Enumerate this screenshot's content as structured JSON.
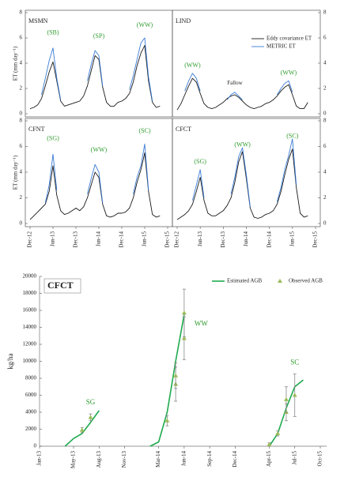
{
  "chart_data": [
    {
      "type": "line",
      "title": "MSMN",
      "ylabel": "ET (mm day⁻¹)",
      "ytick_side": "left",
      "ylim": [
        0,
        8
      ],
      "yticks": [
        0,
        2,
        4,
        6,
        8
      ],
      "x": [
        "Dec-12",
        "Jan-13",
        "Feb-13",
        "Mar-13",
        "Apr-13",
        "May-13",
        "Jun-13",
        "Jul-13",
        "Aug-13",
        "Sep-13",
        "Oct-13",
        "Nov-13",
        "Dec-13",
        "Jan-14",
        "Feb-14",
        "Mar-14",
        "Apr-14",
        "May-14",
        "Jun-14",
        "Jul-14",
        "Aug-14",
        "Sep-14",
        "Oct-14",
        "Nov-14",
        "Dec-14",
        "Jan-15",
        "Feb-15",
        "Mar-15",
        "Apr-15",
        "May-15",
        "Jun-15",
        "Jul-15",
        "Aug-15",
        "Sep-15",
        "Oct-15",
        "Nov-15",
        "Dec-15"
      ],
      "series": [
        {
          "color": "#1a1a1a",
          "values": [
            0.4,
            0.5,
            0.7,
            1.2,
            2.2,
            3.3,
            4.1,
            2.6,
            1.0,
            0.6,
            0.7,
            0.8,
            0.9,
            1.0,
            1.4,
            2.2,
            3.4,
            4.6,
            4.3,
            2.1,
            0.9,
            0.6,
            0.6,
            0.9,
            1.0,
            1.2,
            1.6,
            2.5,
            3.8,
            4.8,
            5.4,
            2.6,
            0.9,
            0.5,
            0.6,
            null,
            null
          ]
        },
        {
          "color": "#3a7bd5",
          "values": [
            null,
            null,
            null,
            1.5,
            2.8,
            4.2,
            5.2,
            2.8,
            1.1,
            null,
            null,
            null,
            null,
            null,
            null,
            2.6,
            3.9,
            5.0,
            4.6,
            2.2,
            null,
            null,
            null,
            null,
            null,
            null,
            1.9,
            3.0,
            4.3,
            5.6,
            6.0,
            2.9,
            1.0,
            null,
            null,
            null,
            null
          ]
        }
      ],
      "annotations": [
        {
          "text": "(SB)",
          "x": "Jun-13",
          "y": 6.4
        },
        {
          "text": "(SP)",
          "x": "Jun-14",
          "y": 6.1
        },
        {
          "text": "(WW)",
          "x": "Jun-15",
          "y": 7.0
        }
      ]
    },
    {
      "type": "line",
      "title": "LIND",
      "ytick_side": "right",
      "ylim": [
        0,
        8
      ],
      "yticks": [
        0,
        2,
        4,
        6,
        8
      ],
      "legend": "upper right",
      "x": [
        "Dec-12",
        "Jan-13",
        "Feb-13",
        "Mar-13",
        "Apr-13",
        "May-13",
        "Jun-13",
        "Jul-13",
        "Aug-13",
        "Sep-13",
        "Oct-13",
        "Nov-13",
        "Dec-13",
        "Jan-14",
        "Feb-14",
        "Mar-14",
        "Apr-14",
        "May-14",
        "Jun-14",
        "Jul-14",
        "Aug-14",
        "Sep-14",
        "Oct-14",
        "Nov-14",
        "Dec-14",
        "Jan-15",
        "Feb-15",
        "Mar-15",
        "Apr-15",
        "May-15",
        "Jun-15",
        "Jul-15",
        "Aug-15",
        "Sep-15",
        "Oct-15",
        "Nov-15",
        "Dec-15"
      ],
      "series": [
        {
          "name": "Eddy covariance ET",
          "color": "#1a1a1a",
          "values": [
            0.3,
            0.8,
            1.5,
            2.2,
            2.8,
            2.5,
            1.6,
            0.8,
            0.5,
            0.4,
            0.5,
            0.7,
            0.9,
            1.2,
            1.4,
            1.5,
            1.3,
            1.0,
            0.7,
            0.5,
            0.4,
            0.5,
            0.6,
            0.8,
            0.9,
            1.1,
            1.4,
            1.8,
            2.1,
            2.3,
            1.5,
            0.6,
            0.4,
            0.4,
            0.9,
            null,
            null
          ]
        },
        {
          "name": "METRIC ET",
          "color": "#3a7bd5",
          "values": [
            null,
            null,
            1.8,
            2.6,
            3.2,
            2.8,
            1.8,
            null,
            null,
            null,
            null,
            null,
            null,
            1.1,
            1.5,
            1.7,
            1.4,
            1.1,
            null,
            null,
            null,
            null,
            null,
            null,
            null,
            null,
            1.5,
            2.0,
            2.4,
            2.6,
            1.7,
            null,
            null,
            null,
            null,
            null,
            null
          ]
        }
      ],
      "annotations": [
        {
          "text": "(WW)",
          "x": "Apr-13",
          "y": 3.8
        },
        {
          "text": "Fallow",
          "x": "Mar-14",
          "y": 2.4
        },
        {
          "text": "(WW)",
          "x": "May-15",
          "y": 3.2
        }
      ]
    },
    {
      "type": "line",
      "title": "CFNT",
      "ylabel": "ET (mm day⁻¹)",
      "ytick_side": "left",
      "ylim": [
        0,
        8
      ],
      "yticks": [
        0,
        2,
        4,
        6,
        8
      ],
      "x": [
        "Dec-12",
        "Jan-13",
        "Feb-13",
        "Mar-13",
        "Apr-13",
        "May-13",
        "Jun-13",
        "Jul-13",
        "Aug-13",
        "Sep-13",
        "Oct-13",
        "Nov-13",
        "Dec-13",
        "Jan-14",
        "Feb-14",
        "Mar-14",
        "Apr-14",
        "May-14",
        "Jun-14",
        "Jul-14",
        "Aug-14",
        "Sep-14",
        "Oct-14",
        "Nov-14",
        "Dec-14",
        "Jan-15",
        "Feb-15",
        "Mar-15",
        "Apr-15",
        "May-15",
        "Jun-15",
        "Jul-15",
        "Aug-15",
        "Sep-15",
        "Oct-15",
        "Nov-15",
        "Dec-15"
      ],
      "xticks": [
        "Dec-12",
        "Jun-13",
        "Dec-13",
        "Jun-14",
        "Dec-14",
        "Jun-15",
        "Dec-15"
      ],
      "series": [
        {
          "color": "#1a1a1a",
          "values": [
            0.3,
            0.6,
            0.9,
            1.2,
            1.5,
            2.5,
            4.5,
            2.2,
            1.0,
            0.7,
            0.8,
            1.0,
            1.2,
            1.0,
            1.3,
            2.0,
            3.0,
            4.0,
            3.6,
            1.5,
            0.6,
            0.5,
            0.6,
            0.8,
            0.8,
            0.9,
            1.2,
            2.0,
            3.2,
            4.2,
            5.5,
            2.5,
            0.7,
            0.5,
            0.6,
            null,
            null
          ]
        },
        {
          "color": "#3a7bd5",
          "values": [
            null,
            null,
            null,
            null,
            1.6,
            3.0,
            5.4,
            2.6,
            null,
            null,
            null,
            null,
            null,
            null,
            null,
            2.3,
            3.5,
            4.6,
            4.0,
            1.6,
            null,
            null,
            null,
            null,
            null,
            null,
            null,
            2.3,
            3.6,
            4.5,
            6.2,
            2.6,
            null,
            null,
            null,
            null,
            null
          ]
        }
      ],
      "annotations": [
        {
          "text": "(SG)",
          "x": "Jun-13",
          "y": 6.6
        },
        {
          "text": "(WW)",
          "x": "Jun-14",
          "y": 5.7
        },
        {
          "text": "(SC)",
          "x": "Jun-15",
          "y": 7.2
        }
      ]
    },
    {
      "type": "line",
      "title": "CFCT",
      "ytick_side": "right",
      "ylim": [
        0,
        8
      ],
      "yticks": [
        0,
        2,
        4,
        6,
        8
      ],
      "x": [
        "Dec-12",
        "Jan-13",
        "Feb-13",
        "Mar-13",
        "Apr-13",
        "May-13",
        "Jun-13",
        "Jul-13",
        "Aug-13",
        "Sep-13",
        "Oct-13",
        "Nov-13",
        "Dec-13",
        "Jan-14",
        "Feb-14",
        "Mar-14",
        "Apr-14",
        "May-14",
        "Jun-14",
        "Jul-14",
        "Aug-14",
        "Sep-14",
        "Oct-14",
        "Nov-14",
        "Dec-14",
        "Jan-15",
        "Feb-15",
        "Mar-15",
        "Apr-15",
        "May-15",
        "Jun-15",
        "Jul-15",
        "Aug-15",
        "Sep-15",
        "Oct-15",
        "Nov-15",
        "Dec-15"
      ],
      "xticks": [
        "Dec-12",
        "Jun-13",
        "Dec-13",
        "Jun-14",
        "Dec-14",
        "Jun-15",
        "Dec-15"
      ],
      "series": [
        {
          "color": "#1a1a1a",
          "values": [
            0.3,
            0.5,
            0.7,
            1.0,
            1.5,
            2.5,
            3.6,
            1.8,
            0.8,
            0.6,
            0.6,
            0.8,
            1.0,
            1.4,
            2.0,
            3.2,
            4.8,
            5.6,
            3.5,
            1.2,
            0.5,
            0.4,
            0.5,
            0.7,
            0.8,
            1.0,
            1.5,
            2.5,
            3.8,
            5.0,
            5.8,
            2.8,
            0.8,
            0.5,
            0.6,
            null,
            null
          ]
        },
        {
          "color": "#3a7bd5",
          "values": [
            null,
            null,
            null,
            null,
            1.8,
            3.0,
            4.2,
            2.0,
            null,
            null,
            null,
            null,
            null,
            null,
            2.3,
            3.6,
            5.2,
            5.9,
            3.8,
            1.3,
            null,
            null,
            null,
            null,
            null,
            null,
            1.7,
            2.8,
            4.2,
            5.3,
            6.6,
            3.0,
            null,
            null,
            null,
            null,
            null
          ]
        }
      ],
      "annotations": [
        {
          "text": "(SG)",
          "x": "Jun-13",
          "y": 4.8
        },
        {
          "text": "(WW)",
          "x": "May-14",
          "y": 6.1
        },
        {
          "text": "(SC)",
          "x": "Jun-15",
          "y": 6.8
        }
      ]
    },
    {
      "type": "line",
      "title": "CFCT",
      "ylabel": "kg/ha",
      "ytick_side": "left",
      "ylim": [
        0,
        20000
      ],
      "yticks": [
        0,
        2000,
        4000,
        6000,
        8000,
        10000,
        12000,
        14000,
        16000,
        18000,
        20000
      ],
      "legend": "upper right",
      "categories": [
        "Jan-13",
        "Feb-13",
        "Mar-13",
        "Apr-13",
        "May-13",
        "Jun-13",
        "Jul-13",
        "Aug-13",
        "Sep-13",
        "Oct-13",
        "Nov-13",
        "Dec-13",
        "Jan-14",
        "Feb-14",
        "Mar-14",
        "Apr-14",
        "May-14",
        "Jun-14",
        "Jul-14",
        "Aug-14",
        "Sep-14",
        "Oct-14",
        "Nov-14",
        "Dec-14",
        "Jan-15",
        "Feb-15",
        "Mar-15",
        "Apr-15",
        "May-15",
        "Jun-15",
        "Jul-15",
        "Aug-15",
        "Sep-15",
        "Oct-15"
      ],
      "xticks": [
        "Jan-13",
        "May-13",
        "Aug-13",
        "Nov-13",
        "Mar-14",
        "Jun-14",
        "Sep-14",
        "Dec-14",
        "Apr-15",
        "Jul-15",
        "Oct-15"
      ],
      "series": [
        {
          "name": "Estimated AGB",
          "color": "#1faa4f",
          "values": [
            null,
            null,
            null,
            0,
            900,
            1500,
            2800,
            4200,
            null,
            null,
            null,
            null,
            null,
            0,
            500,
            4000,
            10000,
            15500,
            null,
            null,
            null,
            null,
            null,
            null,
            null,
            null,
            null,
            0,
            1500,
            4500,
            7000,
            7800,
            null,
            null
          ]
        },
        {
          "name": "Observed AGB",
          "color": "#9bbb59",
          "marker": "triangle",
          "x": [
            "Jun-13",
            "Jul-13",
            "Apr-14",
            "May-14",
            "May-14",
            "Jun-14",
            "Jun-14",
            "Apr-15",
            "May-15",
            "Jun-15",
            "Jun-15",
            "Jul-15"
          ],
          "values": [
            1900,
            3400,
            3000,
            7300,
            8300,
            12700,
            15700,
            200,
            1500,
            4000,
            5500,
            6000
          ],
          "errors": [
            300,
            400,
            600,
            2000,
            1500,
            2500,
            2800,
            200,
            300,
            1000,
            1500,
            2500
          ]
        }
      ],
      "annotations": [
        {
          "text": "SG",
          "x": "Jul-13",
          "y": 5100
        },
        {
          "text": "WW",
          "x": "Aug-14",
          "y": 14400
        },
        {
          "text": "SC",
          "x": "Jul-15",
          "y": 9800
        }
      ]
    }
  ]
}
